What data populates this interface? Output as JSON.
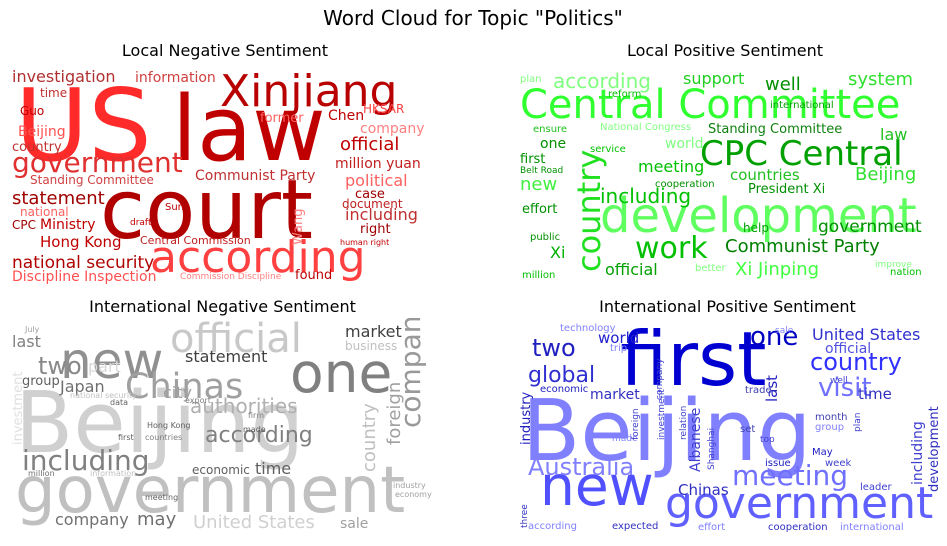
{
  "title": "Word Cloud for Topic \"Politics\"",
  "chart_data": [
    {
      "type": "wordcloud",
      "title": "Local Negative Sentiment",
      "words": [
        "US",
        "law",
        "court",
        "Xinjiang",
        "according",
        "government",
        "investigation",
        "information",
        "Communist Party",
        "official",
        "million yuan",
        "company",
        "political",
        "statement",
        "Standing Committee",
        "national security",
        "Discipline Inspection",
        "Hong Kong",
        "including",
        "Chen",
        "HKSAR",
        "former",
        "case",
        "document",
        "right",
        "Beijing",
        "country",
        "time",
        "Guo",
        "national",
        "CPC",
        "Ministry",
        "Central Commission",
        "Wang",
        "found",
        "Commission Discipline",
        "human right",
        "Sun",
        "draft"
      ]
    },
    {
      "type": "wordcloud",
      "title": "Local Positive Sentiment",
      "words": [
        "Central Committee",
        "development",
        "CPC Central",
        "work",
        "Communist Party",
        "Xi Jinping",
        "including",
        "country",
        "according",
        "support",
        "system",
        "well",
        "law",
        "Standing Committee",
        "meeting",
        "countries",
        "Beijing",
        "President Xi",
        "government",
        "official",
        "new",
        "first",
        "one",
        "effort",
        "Xi",
        "plan",
        "world",
        "service",
        "ensure",
        "million",
        "Belt Road",
        "help",
        "nation",
        "improve",
        "cooperation",
        "National Congress",
        "reform",
        "international",
        "better",
        "public"
      ]
    },
    {
      "type": "wordcloud",
      "title": "International Negative Sentiment",
      "words": [
        "Beijing",
        "government",
        "new",
        "one",
        "official",
        "Chinas",
        "including",
        "companies",
        "according",
        "authorities",
        "statement",
        "two",
        "Japan",
        "market",
        "business",
        "last",
        "part",
        "city",
        "group",
        "time",
        "economic",
        "company",
        "may",
        "United States",
        "sale",
        "foreign",
        "country",
        "investment",
        "July",
        "Hong Kong",
        "countries",
        "first",
        "meeting",
        "million",
        "data",
        "export",
        "industry",
        "economy",
        "firm",
        "made",
        "national security",
        "information"
      ]
    },
    {
      "type": "wordcloud",
      "title": "International Positive Sentiment",
      "words": [
        "Beijing",
        "first",
        "new",
        "government",
        "meeting",
        "Australia",
        "visit",
        "country",
        "one",
        "two",
        "global",
        "United States",
        "official",
        "market",
        "Chinas",
        "world",
        "technology",
        "trip",
        "economic",
        "last",
        "industry",
        "including",
        "development",
        "Albanese",
        "time",
        "trade",
        "set",
        "month",
        "group",
        "May",
        "week",
        "leader",
        "issue",
        "according",
        "expected",
        "effort",
        "cooperation",
        "international",
        "three",
        "sale",
        "Shanghai",
        "made",
        "investment",
        "plan",
        "well",
        "top",
        "relation",
        "foreign",
        "company"
      ]
    }
  ]
}
